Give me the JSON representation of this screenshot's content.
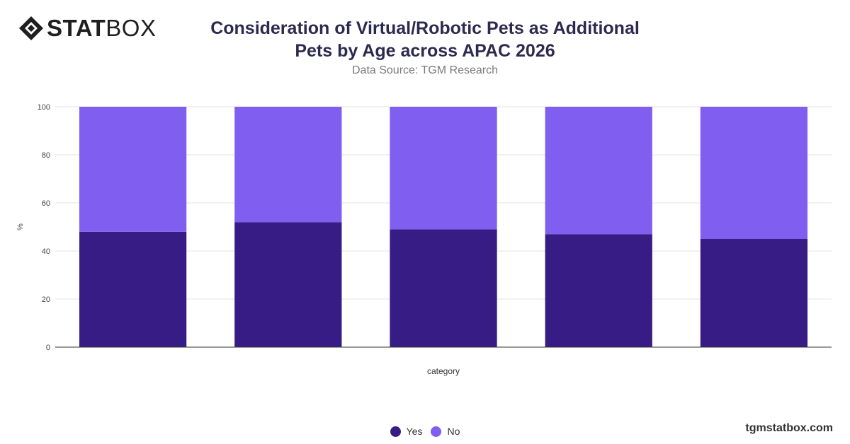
{
  "brand": {
    "logo_bold": "STAT",
    "logo_light": "BOX",
    "logo_icon": "diamond-logo-icon",
    "website": "tgmstatbox.com"
  },
  "chart_data": {
    "type": "bar",
    "stacked": true,
    "title": "Consideration of Virtual/Robotic Pets as Additional Pets by Age across APAC 2026",
    "subtitle": "Data Source: TGM Research",
    "xlabel": "category",
    "ylabel": "%",
    "ylim": [
      0,
      100
    ],
    "yticks": [
      0,
      20,
      40,
      60,
      80,
      100
    ],
    "grid": true,
    "legend_position": "bottom",
    "categories": [
      "",
      "",
      "",
      "",
      ""
    ],
    "series": [
      {
        "name": "Yes",
        "color": "#371c85",
        "values": [
          48,
          52,
          49,
          47,
          45
        ]
      },
      {
        "name": "No",
        "color": "#7f5ef0",
        "values": [
          52,
          48,
          51,
          53,
          55
        ]
      }
    ]
  }
}
